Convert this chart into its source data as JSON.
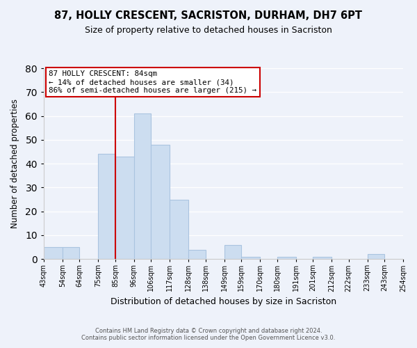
{
  "title": "87, HOLLY CRESCENT, SACRISTON, DURHAM, DH7 6PT",
  "subtitle": "Size of property relative to detached houses in Sacriston",
  "xlabel": "Distribution of detached houses by size in Sacriston",
  "ylabel": "Number of detached properties",
  "bar_color": "#ccddf0",
  "bar_edge_color": "#aac4e0",
  "background_color": "#eef2fa",
  "grid_color": "#ffffff",
  "bin_edges": [
    43,
    54,
    64,
    75,
    85,
    96,
    106,
    117,
    128,
    138,
    149,
    159,
    170,
    180,
    191,
    201,
    212,
    222,
    233,
    243,
    254
  ],
  "bin_labels": [
    "43sqm",
    "54sqm",
    "64sqm",
    "75sqm",
    "85sqm",
    "96sqm",
    "106sqm",
    "117sqm",
    "128sqm",
    "138sqm",
    "149sqm",
    "159sqm",
    "170sqm",
    "180sqm",
    "191sqm",
    "201sqm",
    "212sqm",
    "222sqm",
    "233sqm",
    "243sqm",
    "254sqm"
  ],
  "counts": [
    5,
    5,
    0,
    44,
    43,
    61,
    48,
    25,
    4,
    0,
    6,
    1,
    0,
    1,
    0,
    1,
    0,
    0,
    2,
    0
  ],
  "vline_x": 85,
  "annotation_title": "87 HOLLY CRESCENT: 84sqm",
  "annotation_line1": "← 14% of detached houses are smaller (34)",
  "annotation_line2": "86% of semi-detached houses are larger (215) →",
  "annotation_box_color": "white",
  "annotation_box_edge_color": "#cc0000",
  "vline_color": "#cc0000",
  "footer_line1": "Contains HM Land Registry data © Crown copyright and database right 2024.",
  "footer_line2": "Contains public sector information licensed under the Open Government Licence v3.0.",
  "ylim": [
    0,
    80
  ],
  "yticks": [
    0,
    10,
    20,
    30,
    40,
    50,
    60,
    70,
    80
  ]
}
